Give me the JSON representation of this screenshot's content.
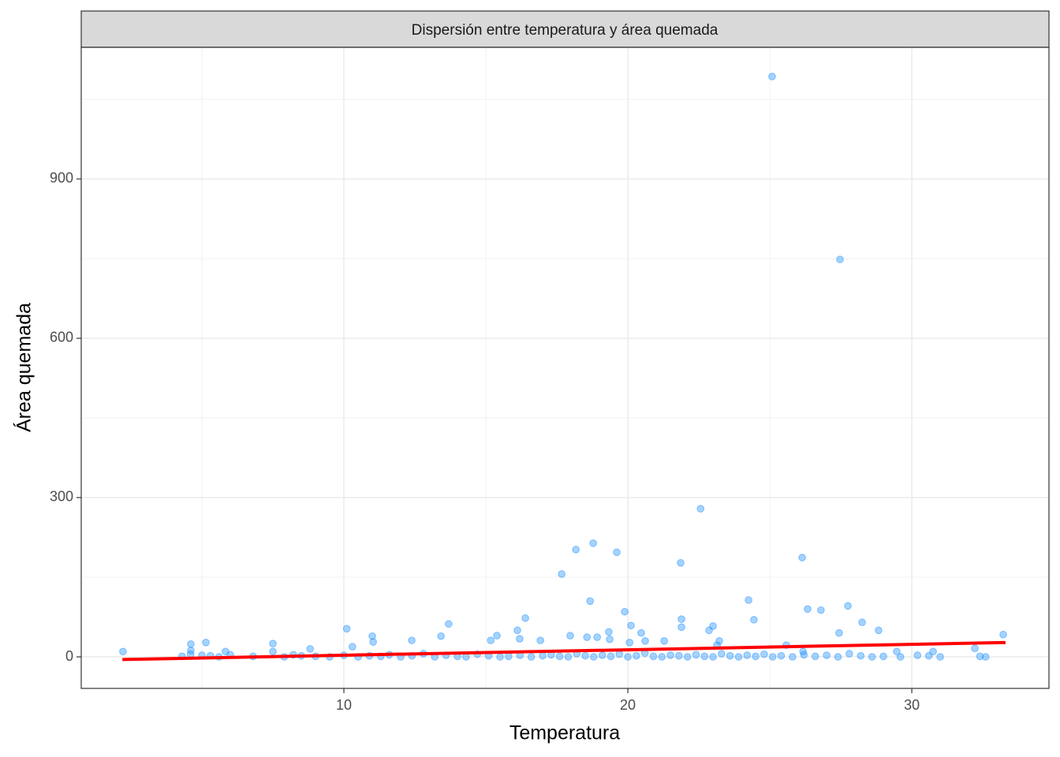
{
  "chart_data": {
    "type": "scatter",
    "title": "Dispersión entre temperatura y área quemada",
    "x_label": "Temperatura",
    "y_label": "Área quemada",
    "xlim": [
      0.75,
      34.83
    ],
    "ylim": [
      -59.4,
      1148
    ],
    "xticks": [
      10,
      20,
      30
    ],
    "yticks": [
      0,
      300,
      600,
      900
    ],
    "minor_xticks": [
      5,
      15,
      25
    ],
    "minor_yticks": [
      150,
      450,
      750,
      1050
    ],
    "grid": true,
    "series": [
      {
        "name": "area",
        "color": "#1E90FF",
        "x": [
          25.08,
          27.47,
          22.56,
          26.14,
          18.17,
          18.78,
          19.61,
          17.67,
          21.86,
          18.67,
          24.25,
          24.44,
          26.33,
          26.8,
          27.75,
          28.25,
          28.83,
          27.44,
          19.89,
          20.11,
          20.47,
          16.39,
          16.11,
          16.19,
          15.39,
          15.17,
          13.69,
          13.42,
          12.39,
          11.0,
          11.03,
          10.1,
          10.3,
          16.92,
          17.97,
          18.56,
          18.92,
          19.33,
          19.36,
          20.06,
          20.61,
          21.28,
          21.89,
          21.89,
          23.0,
          22.86,
          23.22,
          23.14,
          25.58,
          26.17,
          29.47,
          30.75,
          32.22,
          33.22,
          2.22,
          4.61,
          4.61,
          5.14,
          5.83,
          7.5,
          7.5,
          8.81,
          8.22,
          4.3,
          4.6,
          5.0,
          5.3,
          5.6,
          6.0,
          6.8,
          7.9,
          8.5,
          9.0,
          9.5,
          10.0,
          10.5,
          10.9,
          11.3,
          11.6,
          12.0,
          12.4,
          12.8,
          13.2,
          13.6,
          14.0,
          14.3,
          14.7,
          15.1,
          15.5,
          15.8,
          16.2,
          16.6,
          17.0,
          17.3,
          17.6,
          17.9,
          18.2,
          18.5,
          18.8,
          19.1,
          19.4,
          19.7,
          20.0,
          20.3,
          20.6,
          20.9,
          21.2,
          21.5,
          21.8,
          22.1,
          22.4,
          22.7,
          23.0,
          23.3,
          23.6,
          23.9,
          24.2,
          24.5,
          24.8,
          25.1,
          25.4,
          25.8,
          26.2,
          26.6,
          27.0,
          27.4,
          27.8,
          28.2,
          28.6,
          29.0,
          29.6,
          30.2,
          30.6,
          31.0,
          32.4,
          32.6
        ],
        "values": [
          1093,
          748.5,
          279,
          187,
          202,
          214,
          197,
          156,
          177,
          105,
          107,
          70,
          90,
          88,
          96,
          65,
          50,
          45,
          85,
          59,
          45,
          73,
          50,
          34,
          40,
          31,
          62,
          39,
          31,
          39,
          28,
          53,
          19,
          31,
          40,
          37,
          37,
          47,
          33,
          27,
          30,
          30,
          71,
          56,
          58,
          50,
          30,
          22,
          22,
          10,
          10,
          10,
          16,
          42,
          10,
          24,
          12,
          27,
          10,
          25,
          10,
          15,
          4,
          1,
          5,
          3,
          2,
          0,
          4,
          1,
          0,
          2,
          1,
          0,
          3,
          0,
          2,
          1,
          4,
          0,
          2,
          6,
          0,
          3,
          1,
          0,
          5,
          2,
          0,
          1,
          3,
          0,
          2,
          4,
          1,
          0,
          6,
          2,
          0,
          3,
          1,
          5,
          0,
          2,
          7,
          1,
          0,
          3,
          2,
          0,
          4,
          1,
          0,
          6,
          2,
          0,
          3,
          1,
          5,
          0,
          2,
          0,
          4,
          1,
          3,
          0,
          6,
          2,
          0,
          1,
          0,
          3,
          2,
          0,
          1,
          0
        ]
      }
    ],
    "trend": {
      "x": [
        2.2,
        33.3
      ],
      "values": [
        -5,
        27
      ],
      "color": "#FF0000"
    }
  }
}
